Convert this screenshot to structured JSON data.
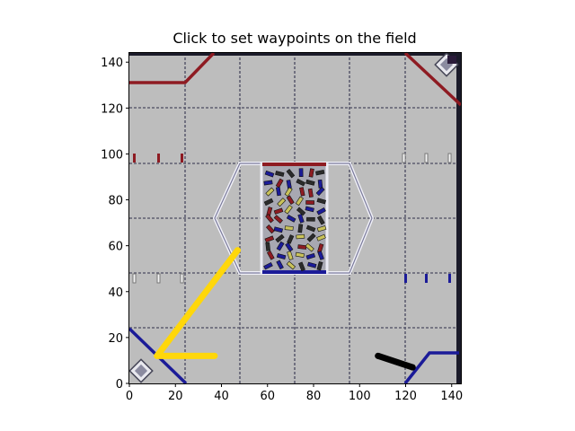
{
  "window": {
    "title": "Click to set waypoints on the field"
  },
  "colors": {
    "field": "#bdbdbd",
    "frame_dark": "#1b1b2a",
    "tile_seam": "#5e5e70",
    "red_alliance": "#8e1b22",
    "blue_alliance": "#1b1b98",
    "path_yellow": "#ffd70a",
    "path_black": "#000000",
    "goal_outline": "#f0f0f8",
    "goal_border": "#7a7a9a"
  },
  "icons": {
    "robot_top_right": "robot-icon",
    "robot_bottom_left": "robot-icon"
  },
  "axes": {
    "x_ticks": [
      "0",
      "20",
      "40",
      "60",
      "80",
      "100",
      "120",
      "140"
    ],
    "y_ticks": [
      "0",
      "20",
      "40",
      "60",
      "80",
      "100",
      "120",
      "140"
    ],
    "xlim": [
      0,
      144
    ],
    "ylim": [
      0,
      144
    ]
  },
  "chart_data": {
    "type": "line",
    "title": "Click to set waypoints on the field",
    "xlim": [
      0,
      144
    ],
    "ylim": [
      0,
      144
    ],
    "grid": false,
    "series": [
      {
        "color": "#ffd70a",
        "x": [
          47,
          12,
          37
        ],
        "y": [
          58,
          12,
          12
        ]
      },
      {
        "color": "#000000",
        "x": [
          108,
          123
        ],
        "y": [
          12,
          7
        ]
      }
    ]
  }
}
